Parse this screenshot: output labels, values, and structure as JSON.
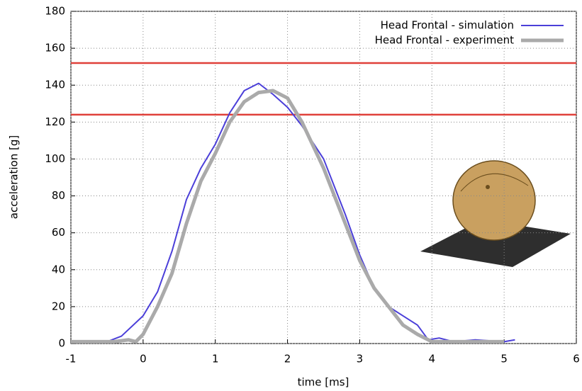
{
  "chart_data": {
    "type": "line",
    "xlabel": "time [ms]",
    "ylabel": "acceleration [g]",
    "xlim": [
      -1,
      6
    ],
    "ylim": [
      0,
      180
    ],
    "xticks": [
      -1,
      0,
      1,
      2,
      3,
      4,
      5,
      6
    ],
    "yticks": [
      0,
      20,
      40,
      60,
      80,
      100,
      120,
      140,
      160,
      180
    ],
    "grid": true,
    "legend": "upper right",
    "reference_lines": {
      "color": "#e0403a",
      "values": [
        152,
        124
      ]
    },
    "series": [
      {
        "name": "Head Frontal - simulation",
        "color": "#4b3fd9",
        "width": 2,
        "x": [
          -1,
          -0.5,
          -0.3,
          0,
          0.2,
          0.4,
          0.6,
          0.8,
          1.0,
          1.2,
          1.4,
          1.6,
          1.8,
          2.0,
          2.2,
          2.5,
          2.8,
          3.0,
          3.2,
          3.4,
          3.6,
          3.8,
          3.95,
          4.1,
          4.3,
          4.6,
          5.0,
          5.15
        ],
        "values": [
          1,
          1,
          4,
          15,
          28,
          50,
          78,
          95,
          108,
          125,
          137,
          141,
          135,
          128,
          118,
          100,
          70,
          48,
          30,
          20,
          15,
          10,
          2,
          3,
          1,
          2,
          1,
          2
        ]
      },
      {
        "name": "Head Frontal - experiment",
        "color": "#aaaaaa",
        "width": 5,
        "x": [
          -1,
          -0.4,
          -0.2,
          -0.1,
          0,
          0.2,
          0.4,
          0.6,
          0.8,
          1.0,
          1.2,
          1.4,
          1.6,
          1.8,
          2.0,
          2.2,
          2.5,
          2.8,
          3.0,
          3.2,
          3.4,
          3.6,
          3.8,
          4.0,
          4.5,
          5.0
        ],
        "values": [
          1,
          1,
          2,
          1,
          5,
          20,
          38,
          65,
          88,
          103,
          120,
          131,
          136,
          137,
          133,
          120,
          95,
          65,
          45,
          30,
          20,
          10,
          5,
          1,
          1,
          1
        ]
      }
    ]
  }
}
